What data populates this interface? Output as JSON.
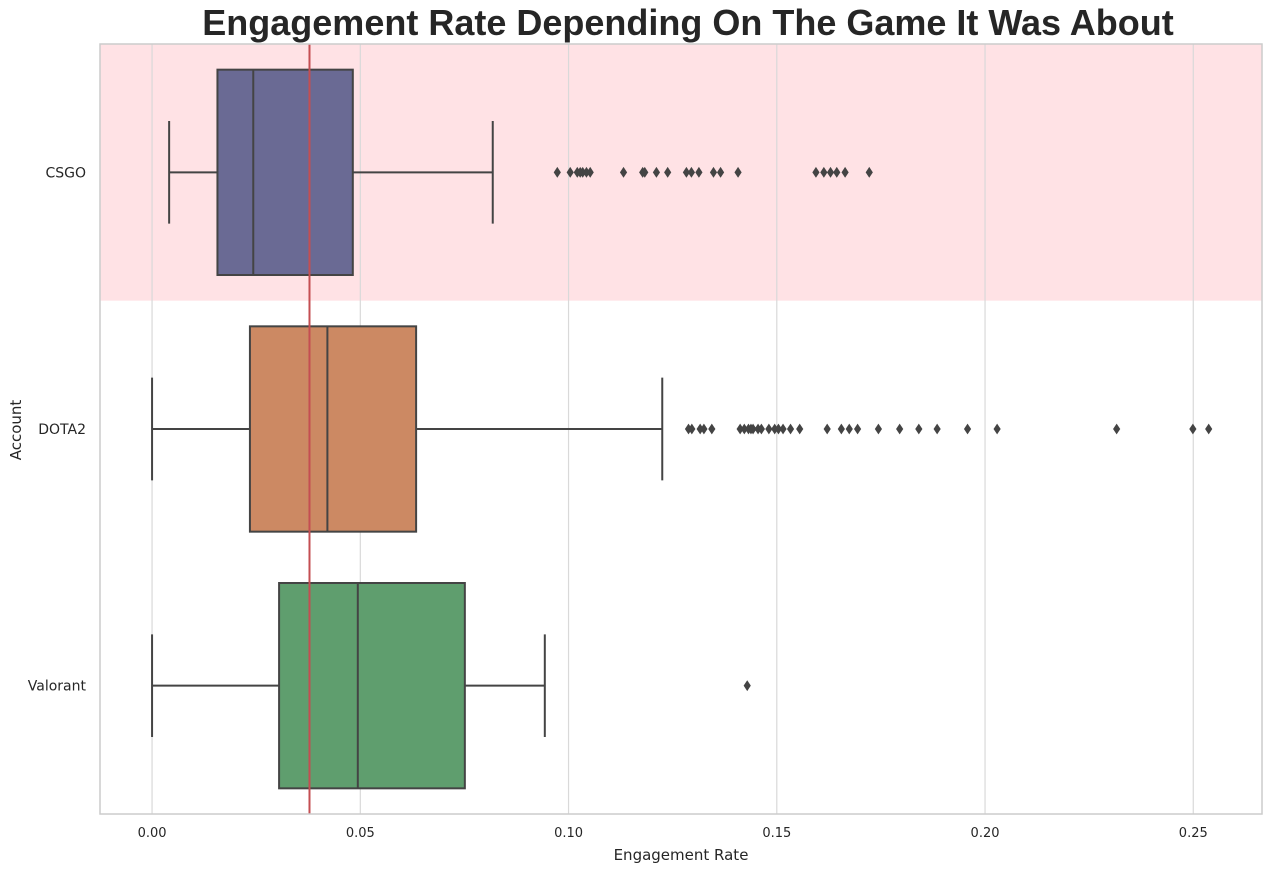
{
  "chart_data": {
    "type": "box",
    "orientation": "horizontal",
    "title": "Engagement Rate Depending On The Game It Was About",
    "xlabel": "Engagement Rate",
    "ylabel": "Account",
    "xlim": [
      -0.0125,
      0.2665
    ],
    "xticks": [
      0.0,
      0.05,
      0.1,
      0.15,
      0.2,
      0.25
    ],
    "xtick_labels": [
      "0.00",
      "0.05",
      "0.10",
      "0.15",
      "0.20",
      "0.25"
    ],
    "grid": "vertical",
    "reference_line": {
      "value": 0.0378,
      "color": "#c44e52"
    },
    "highlight_category": {
      "category": "CSGO",
      "color": "#ffe2e5"
    },
    "categories": [
      "CSGO",
      "DOTA2",
      "Valorant"
    ],
    "boxes": [
      {
        "name": "CSGO",
        "color": "#6a6a94",
        "whisker_low": 0.0041,
        "q1": 0.0157,
        "median": 0.0243,
        "q3": 0.0482,
        "whisker_high": 0.0818,
        "outliers": [
          0.0973,
          0.1004,
          0.1021,
          0.1028,
          0.1034,
          0.1043,
          0.1052,
          0.1132,
          0.1178,
          0.1183,
          0.1211,
          0.1238,
          0.1283,
          0.1295,
          0.1313,
          0.1348,
          0.1365,
          0.1407,
          0.1594,
          0.1613,
          0.1629,
          0.1644,
          0.1664,
          0.1722
        ]
      },
      {
        "name": "DOTA2",
        "color": "#cc8963",
        "whisker_low": 0.0,
        "q1": 0.0235,
        "median": 0.0421,
        "q3": 0.0634,
        "whisker_high": 0.1225,
        "outliers": [
          0.1288,
          0.1296,
          0.1316,
          0.1325,
          0.1344,
          0.1412,
          0.1422,
          0.1432,
          0.1438,
          0.1443,
          0.1455,
          0.1463,
          0.1481,
          0.1495,
          0.1504,
          0.1515,
          0.1533,
          0.1555,
          0.1621,
          0.1655,
          0.1674,
          0.1694,
          0.1744,
          0.1795,
          0.1841,
          0.1885,
          0.1958,
          0.2029,
          0.2316,
          0.2499,
          0.2537
        ]
      },
      {
        "name": "Valorant",
        "color": "#5f9e6e",
        "whisker_low": 0.0,
        "q1": 0.0305,
        "median": 0.0494,
        "q3": 0.0751,
        "whisker_high": 0.0943,
        "outliers": [
          0.1429
        ]
      }
    ]
  }
}
